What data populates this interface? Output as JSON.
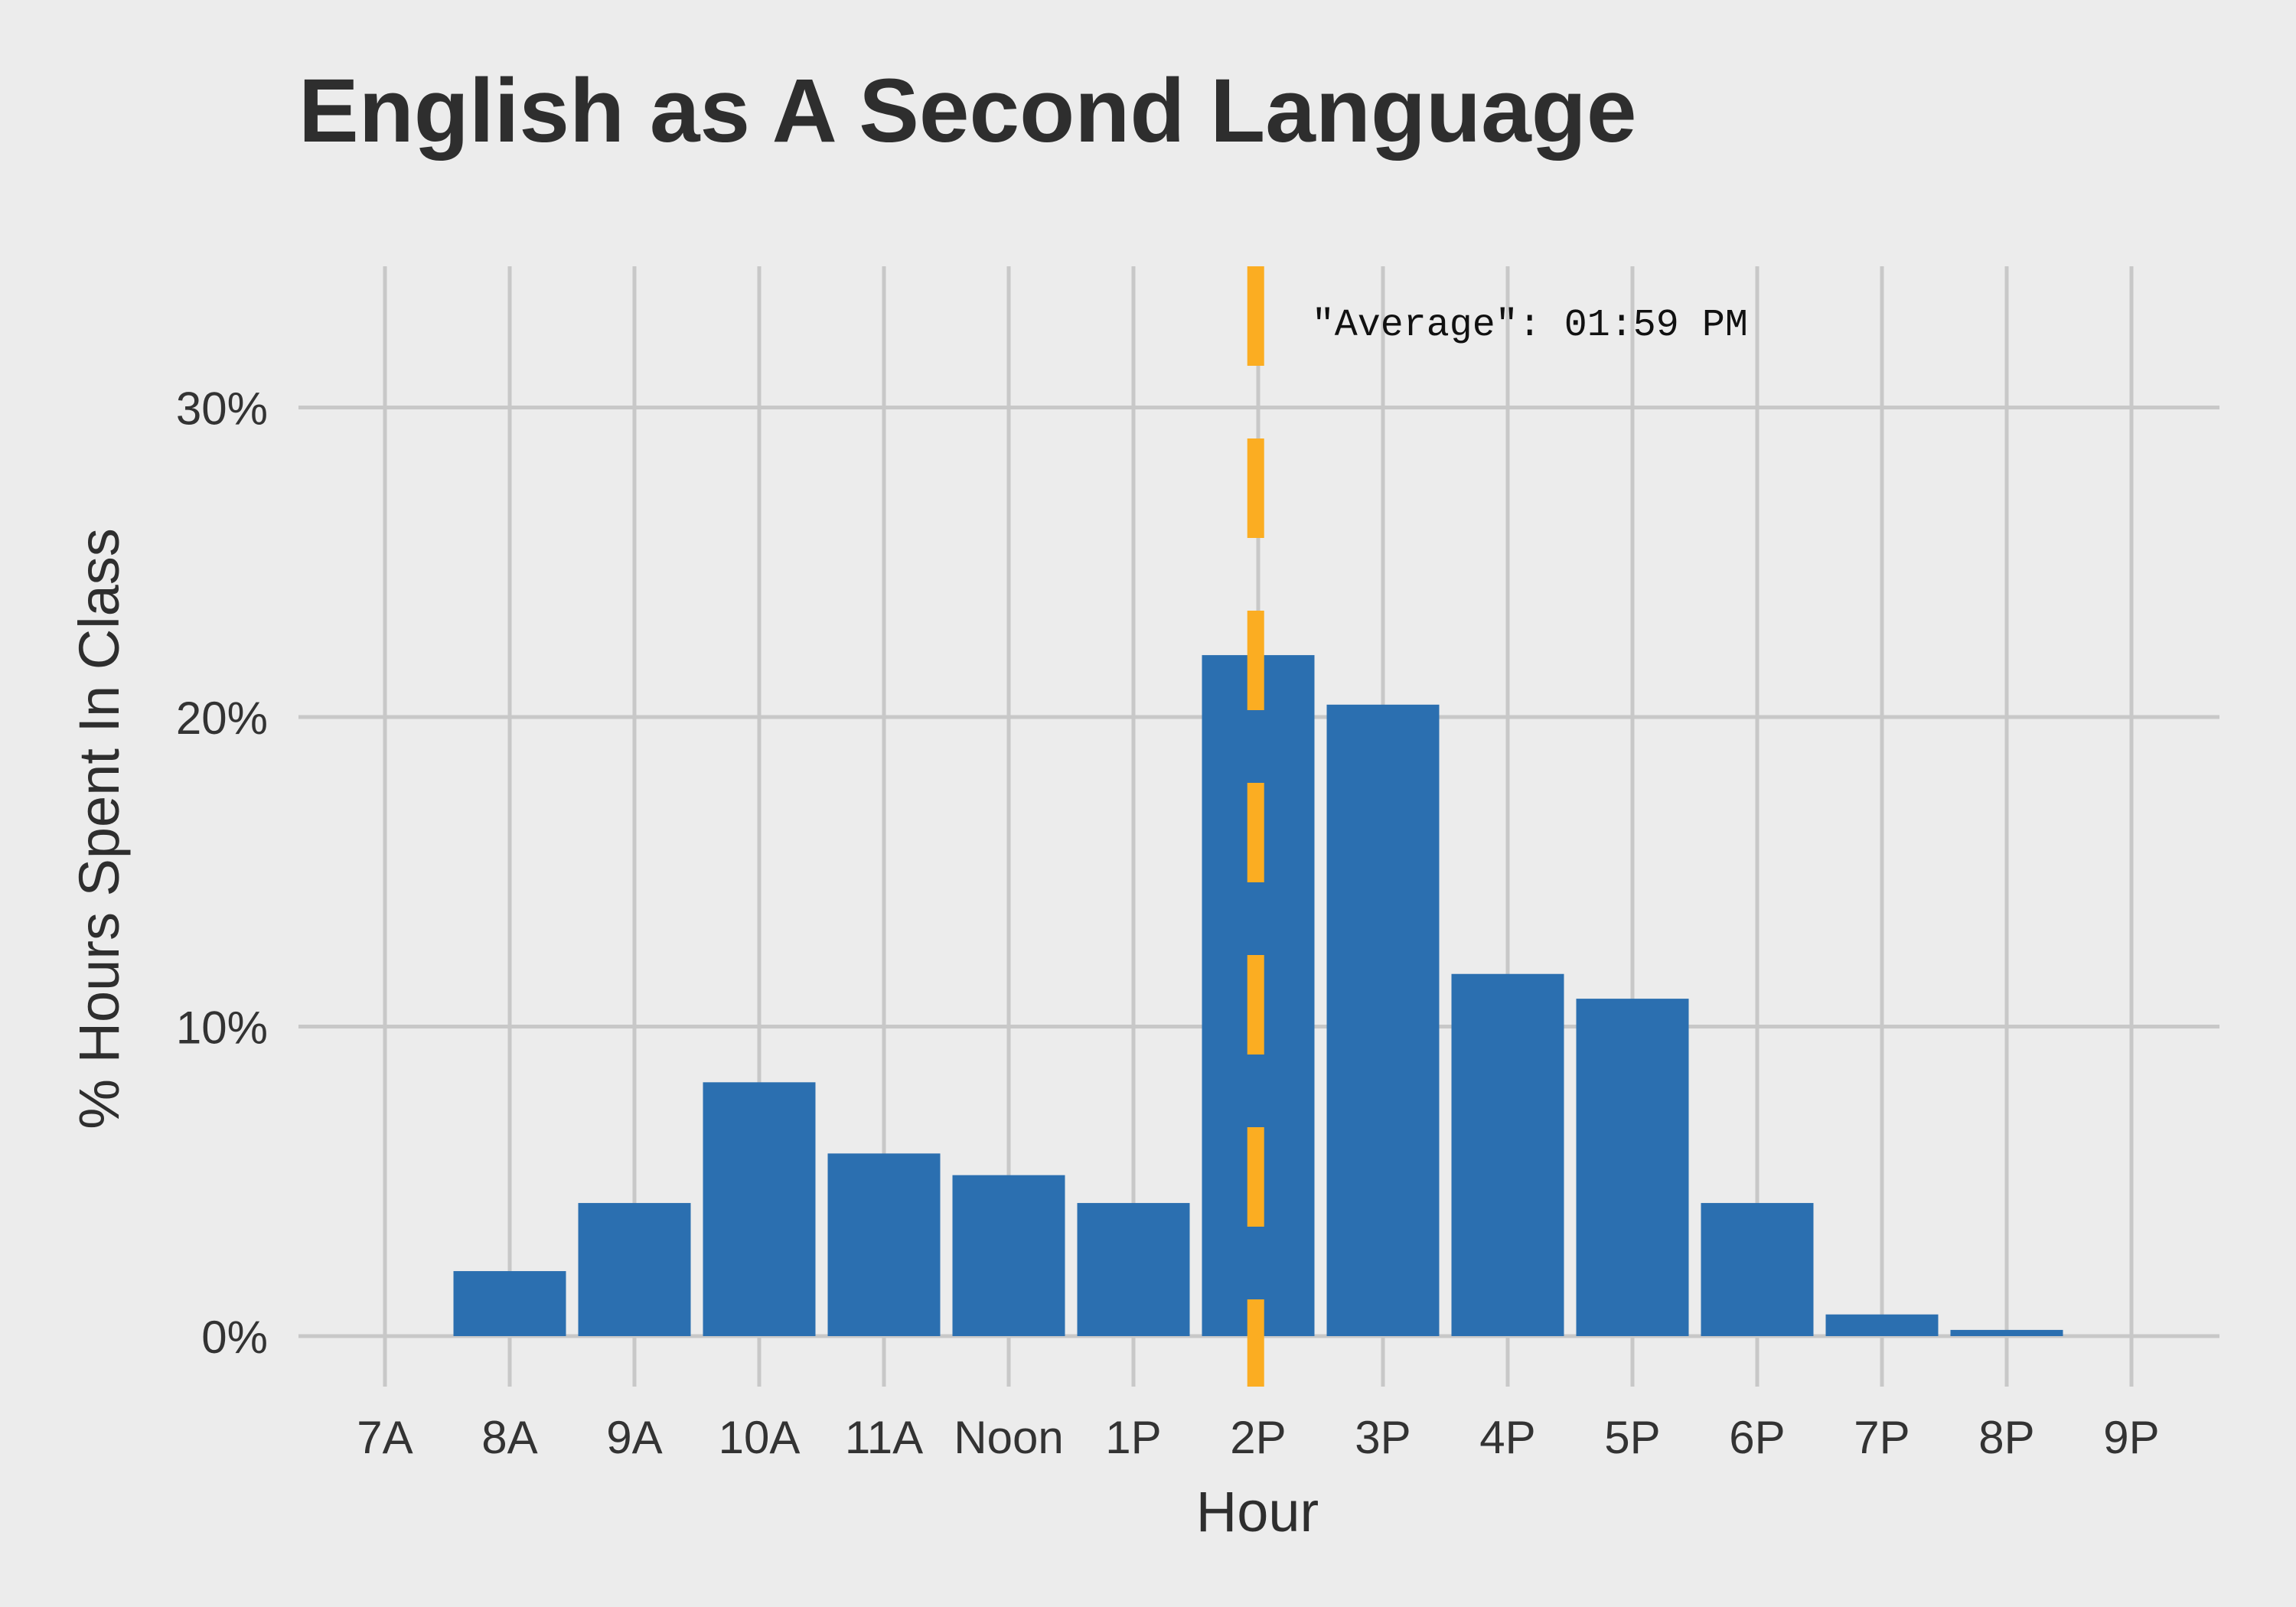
{
  "chart_data": {
    "type": "bar",
    "title": "English as A Second Language",
    "xlabel": "Hour",
    "ylabel": "% Hours Spent In Class",
    "x_ticks": [
      "7A",
      "8A",
      "9A",
      "10A",
      "11A",
      "Noon",
      "1P",
      "2P",
      "3P",
      "4P",
      "5P",
      "6P",
      "7P",
      "8P",
      "9P"
    ],
    "y_ticks": [
      "0%",
      "10%",
      "20%",
      "30%"
    ],
    "ylim": [
      0,
      35
    ],
    "categories": [
      "8A",
      "9A",
      "10A",
      "11A",
      "Noon",
      "1P",
      "2P",
      "3P",
      "4P",
      "5P",
      "6P",
      "7P",
      "8P"
    ],
    "values": [
      2.1,
      4.3,
      8.2,
      5.9,
      5.2,
      4.3,
      22.0,
      20.4,
      11.7,
      10.9,
      4.3,
      0.7,
      0.2
    ],
    "average_line": {
      "hour": 13.98,
      "label": "\"Average\": 01:59 PM"
    },
    "grid": true,
    "colors": {
      "bar": "#2b6fb0",
      "average_line": "#fbad22",
      "grid": "#c8c8c8",
      "background": "#ececec"
    }
  }
}
